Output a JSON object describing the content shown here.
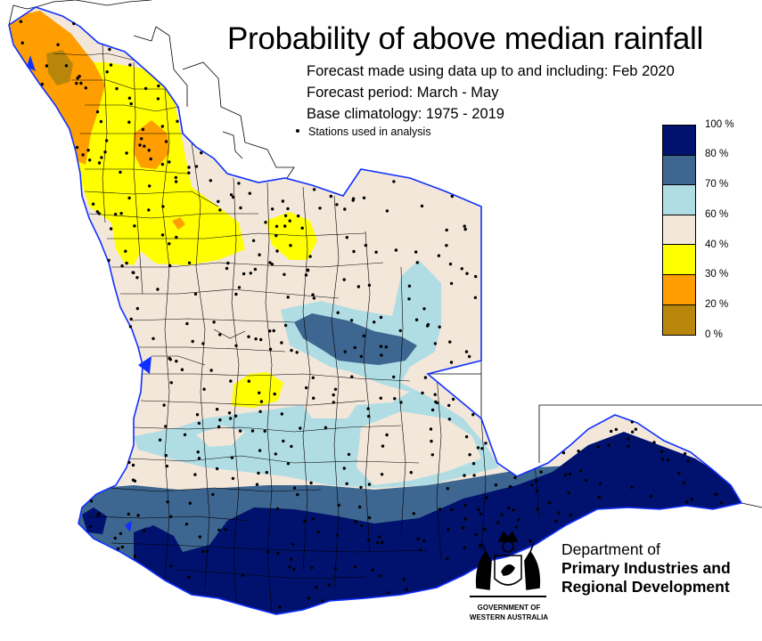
{
  "header": {
    "title": "Probability of above median rainfall",
    "forecast_made": "Forecast made using data up to and including: Feb 2020",
    "forecast_period": "Forecast period: March - May",
    "base_climatology": "Base climatology: 1975 - 2019",
    "stations_note": "Stations used in analysis"
  },
  "legend": {
    "items": [
      {
        "label": "100 %",
        "color": "#00126e"
      },
      {
        "label": "80 %",
        "color": "#3d6690"
      },
      {
        "label": "70 %",
        "color": "#b0dde4"
      },
      {
        "label": "60 %",
        "color": "#f3e7da"
      },
      {
        "label": "40 %",
        "color": "#ffff00"
      },
      {
        "label": "30 %",
        "color": "#ff9e00"
      },
      {
        "label": "20 %",
        "color": "#b8860b"
      },
      {
        "label": "0 %",
        "color": ""
      }
    ]
  },
  "colors": {
    "coast": "#1030ff",
    "boundaries": "#000000",
    "background": "#ffffff"
  },
  "logo": {
    "dept_line1": "Department of",
    "dept_line2": "Primary Industries and",
    "dept_line3": "Regional Development",
    "govt_line1": "GOVERNMENT OF",
    "govt_line2": "WESTERN AUSTRALIA",
    "crest_icon": "coat-of-arms-icon"
  }
}
